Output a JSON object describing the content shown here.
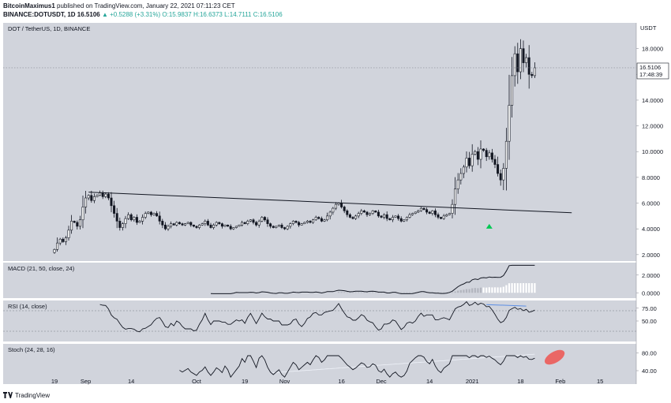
{
  "header": {
    "author": "BitcoinMaximus1",
    "published": "published on TradingView.com, January 22, 2021 07:11:23 CET",
    "symbol": "BINANCE:DOTUSDT, 1D",
    "last_price": "16.5106",
    "change": "▲ +0.5288 (+3.31%)",
    "ohlc": "O:15.9837 H:16.6373 L:14.7111 C:16.5106"
  },
  "chart_data": [
    {
      "type": "candlestick",
      "title": "DOT / TetherUS, 1D, BINANCE",
      "y_unit_label": "USDT",
      "ylim": [
        1.5,
        20.0
      ],
      "y_ticks": [
        "2.0000",
        "4.0000",
        "6.0000",
        "8.0000",
        "10.0000",
        "12.0000",
        "14.0000",
        "16.0000",
        "18.0000"
      ],
      "x_ticks": [
        "19",
        "Sep",
        "14",
        "Oct",
        "19",
        "Nov",
        "16",
        "Dec",
        "14",
        "2021",
        "18",
        "Feb",
        "15"
      ],
      "x_tick_days": [
        0,
        11,
        27,
        50,
        67,
        81,
        101,
        115,
        132,
        147,
        164,
        178,
        192
      ],
      "last_price_label": "16.5106",
      "countdown_label": "17:48:39",
      "closes": [
        2.4,
        2.9,
        3.2,
        3.0,
        3.3,
        3.9,
        4.6,
        4.5,
        4.2,
        4.7,
        5.7,
        6.4,
        6.6,
        6.2,
        6.5,
        6.6,
        6.8,
        6.5,
        6.7,
        6.4,
        5.8,
        5.2,
        4.6,
        4.1,
        4.4,
        4.8,
        5.1,
        4.7,
        4.9,
        4.5,
        4.6,
        4.9,
        5.2,
        5.3,
        5.1,
        5.2,
        5.0,
        4.6,
        4.3,
        4.0,
        4.2,
        4.4,
        4.3,
        4.5,
        4.4,
        4.3,
        4.4,
        4.5,
        4.3,
        4.2,
        4.1,
        4.3,
        4.4,
        4.6,
        4.3,
        4.1,
        4.3,
        4.5,
        4.4,
        4.2,
        4.3,
        4.2,
        4.0,
        4.1,
        4.2,
        4.3,
        4.5,
        4.4,
        4.6,
        4.7,
        4.5,
        4.3,
        4.6,
        4.9,
        4.7,
        4.4,
        4.2,
        4.1,
        4.2,
        4.3,
        4.1,
        4.0,
        4.2,
        4.4,
        4.6,
        4.5,
        4.3,
        4.4,
        4.5,
        4.6,
        4.5,
        4.7,
        4.9,
        4.8,
        4.6,
        4.7,
        5.0,
        5.3,
        5.6,
        5.9,
        6.0,
        5.7,
        5.4,
        5.1,
        4.9,
        4.8,
        5.0,
        5.2,
        5.4,
        5.3,
        5.1,
        5.2,
        5.4,
        5.3,
        5.0,
        4.9,
        5.1,
        4.8,
        4.7,
        4.9,
        5.0,
        4.8,
        4.6,
        4.7,
        4.9,
        5.1,
        5.2,
        5.3,
        5.4,
        5.6,
        5.5,
        5.3,
        5.2,
        5.4,
        5.1,
        4.9,
        4.8,
        5.0,
        5.1,
        5.2,
        5.9,
        7.1,
        7.8,
        8.3,
        8.8,
        9.5,
        8.9,
        9.8,
        10.0,
        9.4,
        10.2,
        10.1,
        9.6,
        9.9,
        9.4,
        9.0,
        8.3,
        7.8,
        8.7,
        10.8,
        13.6,
        15.9,
        17.6,
        16.2,
        18.0,
        16.9,
        17.3,
        16.0,
        15.9,
        16.51
      ],
      "trendline": {
        "start": [
          12,
          6.85
        ],
        "end": [
          182,
          5.25
        ]
      },
      "marker": {
        "day": 153,
        "value": 4.2,
        "shape": "triangle-up",
        "color": "#00c853"
      }
    },
    {
      "type": "line",
      "title": "MACD (21, 50, close, 24)",
      "y_ticks": [
        "2.0000",
        "0.0000"
      ],
      "ylim": [
        -0.6,
        3.4
      ]
    },
    {
      "type": "line",
      "title": "RSI (14, close)",
      "y_ticks": [
        "75.00",
        "50.00"
      ],
      "ylim": [
        10,
        90
      ]
    },
    {
      "type": "line",
      "title": "Stoch (24, 28, 16)",
      "y_ticks": [
        "80.00",
        "40.00"
      ],
      "ylim": [
        10,
        100
      ]
    }
  ],
  "footer": {
    "logo": "TradingView"
  },
  "colors": {
    "pane_bg": "#d1d4dc",
    "candle": "#131722",
    "price_label_bg": "#ffffff",
    "highlight": "#ef5350",
    "rsi_divergence": "#5b8ee6"
  }
}
